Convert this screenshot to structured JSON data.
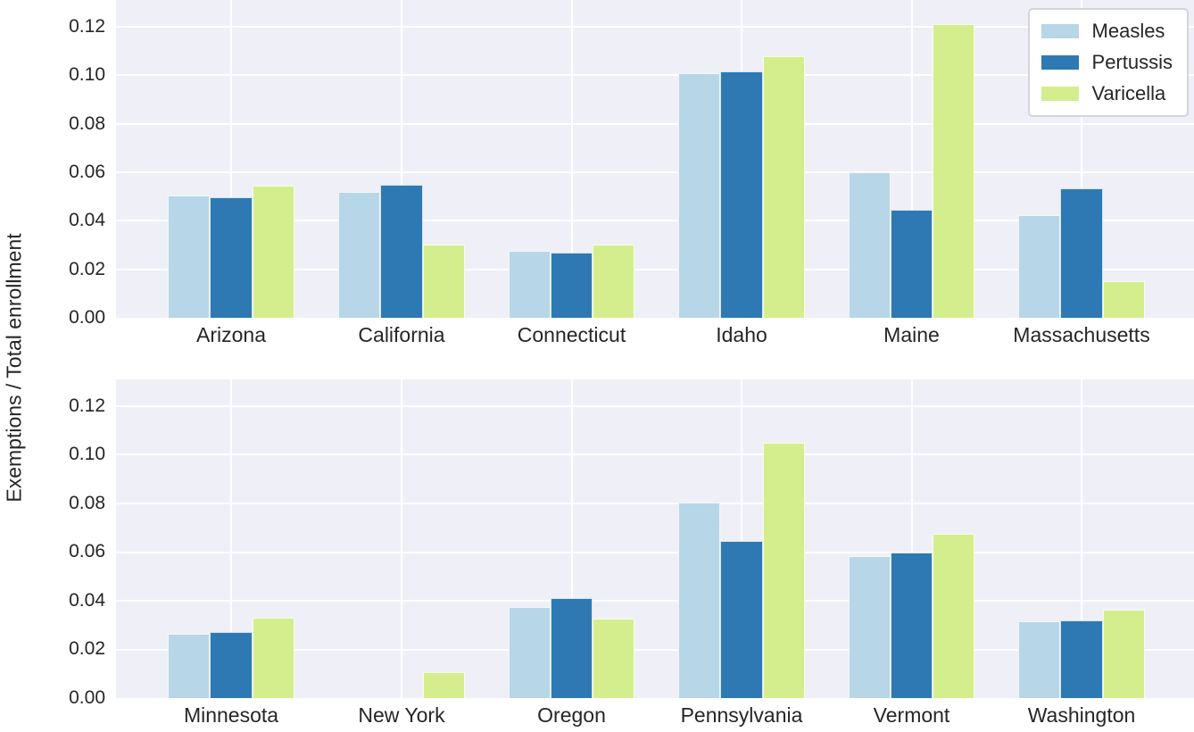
{
  "figure": {
    "ylabel": "Exemptions / Total enrollment",
    "background_color": "#ffffff",
    "plot_background_color": "#eff0f7",
    "grid_color": "#ffffff",
    "text_color": "#262626"
  },
  "legend": {
    "position": "upper right",
    "entries": [
      {
        "label": "Measles",
        "color": "#b7d6e8"
      },
      {
        "label": "Pertussis",
        "color": "#2e79b3"
      },
      {
        "label": "Varicella",
        "color": "#d4ee8e"
      }
    ]
  },
  "chart_data": [
    {
      "type": "bar",
      "subplot": "top",
      "categories": [
        "Arizona",
        "California",
        "Connecticut",
        "Idaho",
        "Maine",
        "Massachusetts"
      ],
      "series": [
        {
          "name": "Measles",
          "color": "#b7d6e8",
          "values": [
            0.0505,
            0.052,
            0.0275,
            0.101,
            0.06,
            0.0425
          ]
        },
        {
          "name": "Pertussis",
          "color": "#2e79b3",
          "values": [
            0.0495,
            0.055,
            0.027,
            0.1015,
            0.0445,
            0.0535
          ]
        },
        {
          "name": "Varicella",
          "color": "#d4ee8e",
          "values": [
            0.0545,
            0.03,
            0.03,
            0.108,
            0.121,
            0.015
          ]
        }
      ],
      "ylabel": "Exemptions / Total enrollment",
      "ylim": [
        0,
        0.131
      ],
      "yticks": [
        "0.00",
        "0.02",
        "0.04",
        "0.06",
        "0.08",
        "0.10",
        "0.12"
      ],
      "grid": true
    },
    {
      "type": "bar",
      "subplot": "bottom",
      "categories": [
        "Minnesota",
        "New York",
        "Oregon",
        "Pennsylvania",
        "Vermont",
        "Washington"
      ],
      "series": [
        {
          "name": "Measles",
          "color": "#b7d6e8",
          "values": [
            0.0265,
            0,
            0.0375,
            0.0805,
            0.0585,
            0.0315
          ]
        },
        {
          "name": "Pertussis",
          "color": "#2e79b3",
          "values": [
            0.027,
            0,
            0.041,
            0.0645,
            0.06,
            0.032
          ]
        },
        {
          "name": "Varicella",
          "color": "#d4ee8e",
          "values": [
            0.033,
            0.0105,
            0.0325,
            0.105,
            0.0675,
            0.0365
          ]
        }
      ],
      "ylabel": "Exemptions / Total enrollment",
      "ylim": [
        0,
        0.131
      ],
      "yticks": [
        "0.00",
        "0.02",
        "0.04",
        "0.06",
        "0.08",
        "0.10",
        "0.12"
      ],
      "grid": true
    }
  ]
}
